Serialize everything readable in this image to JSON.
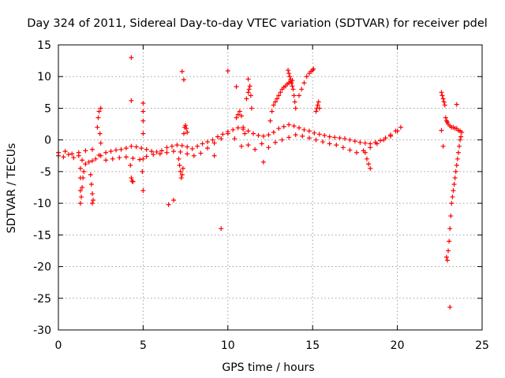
{
  "chart_data": {
    "type": "scatter",
    "title": "Day 324 of 2011, Sidereal Day-to-day VTEC variation (SDTVAR) for receiver pdel",
    "xlabel": "GPS time / hours",
    "ylabel": "SDTVAR / TECUs",
    "xlim": [
      0,
      25
    ],
    "ylim": [
      -30,
      15
    ],
    "xticks": [
      0,
      5,
      10,
      15,
      20,
      25
    ],
    "yticks": [
      -30,
      -25,
      -20,
      -15,
      -10,
      -5,
      0,
      5,
      10,
      15
    ],
    "grid": true,
    "marker": "+",
    "color": "#ff0000",
    "series": [
      {
        "name": "SDTVAR",
        "x": [
          0.0,
          0.3,
          0.6,
          0.9,
          1.2,
          1.4,
          1.6,
          1.8,
          2.0,
          2.2,
          2.5,
          2.8,
          3.1,
          3.4,
          3.7,
          4.0,
          4.3,
          4.6,
          4.9,
          5.2,
          5.5,
          5.8,
          6.1,
          6.4,
          6.7,
          7.0,
          7.3,
          7.6,
          7.9,
          8.2,
          8.5,
          8.8,
          9.1,
          9.4,
          9.7,
          10.0,
          10.3,
          10.6,
          10.9,
          11.2,
          11.5,
          11.8,
          12.1,
          12.4,
          12.7,
          13.0,
          13.3,
          13.6,
          13.9,
          14.2,
          14.5,
          14.8,
          15.1,
          15.4,
          15.7,
          16.0,
          16.3,
          16.6,
          16.9,
          17.2,
          17.5,
          17.8,
          18.1,
          18.4,
          18.7,
          19.0,
          19.3,
          19.6,
          19.9,
          20.2,
          0.0,
          0.4,
          0.8,
          1.2,
          1.6,
          2.0,
          2.4,
          2.8,
          3.2,
          3.6,
          4.0,
          4.4,
          4.8,
          5.2,
          5.6,
          6.0,
          6.4,
          6.8,
          7.2,
          7.6,
          8.0,
          8.4,
          8.8,
          9.2,
          9.6,
          10.0,
          10.4,
          10.8,
          11.2,
          11.6,
          12.0,
          12.4,
          12.8,
          13.2,
          13.6,
          14.0,
          14.4,
          14.8,
          15.2,
          15.6,
          16.0,
          16.4,
          16.8,
          17.2,
          17.6,
          18.0,
          18.4,
          18.8,
          19.2,
          19.6,
          20.0,
          1.3,
          1.3,
          1.3,
          1.35,
          1.4,
          1.45,
          1.5,
          1.9,
          1.95,
          2.0,
          2.05,
          2.3,
          2.35,
          2.4,
          2.45,
          2.5,
          4.25,
          4.3,
          4.35,
          4.95,
          5.0,
          5.0,
          5.0,
          5.0,
          5.0,
          7.1,
          7.15,
          7.2,
          7.25,
          7.3,
          7.35,
          7.4,
          7.45,
          7.5,
          7.55,
          7.6,
          10.5,
          10.6,
          10.7,
          10.8,
          10.9,
          11.0,
          11.1,
          11.2,
          11.25,
          11.3,
          11.35,
          11.4,
          12.5,
          12.6,
          12.7,
          12.8,
          12.9,
          13.0,
          13.1,
          13.2,
          13.3,
          13.4,
          13.5,
          13.6,
          13.7,
          13.8,
          13.55,
          13.6,
          13.65,
          13.7,
          13.75,
          13.8,
          13.85,
          13.9,
          13.95,
          14.0,
          14.2,
          14.35,
          14.5,
          14.65,
          14.8,
          14.9,
          15.0,
          15.05,
          15.2,
          15.25,
          15.3,
          15.35,
          15.4,
          18.1,
          18.2,
          18.3,
          18.4,
          22.6,
          22.65,
          22.7,
          22.75,
          22.8,
          22.85,
          22.9,
          22.95,
          23.0,
          23.1,
          23.2,
          23.3,
          23.4,
          23.5,
          23.6,
          23.7,
          23.8,
          22.9,
          22.95,
          23.0,
          23.05,
          23.1,
          23.15,
          23.2,
          23.25,
          23.3,
          23.35,
          23.4,
          23.45,
          23.5,
          23.55,
          23.6,
          23.65,
          23.7,
          23.75,
          4.3,
          4.3,
          7.3,
          7.4,
          10.0,
          9.6,
          6.5,
          6.8,
          5.0,
          4.4,
          1.3,
          2.0,
          2.5,
          23.5,
          23.1,
          22.6,
          22.7,
          10.5,
          11.2,
          12.1,
          9.2
        ],
        "y": [
          -2.5,
          -2.7,
          -2.3,
          -2.8,
          -2.5,
          -3.2,
          -3.8,
          -3.5,
          -3.3,
          -3.0,
          -2.5,
          -2.0,
          -1.8,
          -1.6,
          -1.5,
          -1.3,
          -1.0,
          -1.1,
          -1.3,
          -1.5,
          -1.8,
          -1.9,
          -1.7,
          -1.2,
          -1.0,
          -0.8,
          -0.9,
          -1.1,
          -1.4,
          -1.0,
          -0.6,
          -0.3,
          0.0,
          0.5,
          0.9,
          1.3,
          1.6,
          1.9,
          1.7,
          1.4,
          1.0,
          0.7,
          0.6,
          0.8,
          1.2,
          1.8,
          2.1,
          2.4,
          2.2,
          1.9,
          1.6,
          1.4,
          1.1,
          0.9,
          0.7,
          0.5,
          0.4,
          0.3,
          0.2,
          0.0,
          -0.2,
          -0.4,
          -0.5,
          -0.6,
          -0.4,
          -0.1,
          0.3,
          0.8,
          1.4,
          2.0,
          -2.0,
          -1.8,
          -2.2,
          -2.0,
          -1.7,
          -1.5,
          -2.4,
          -3.2,
          -3.0,
          -2.8,
          -2.7,
          -2.9,
          -3.1,
          -2.6,
          -2.3,
          -2.2,
          -2.0,
          -1.8,
          -1.9,
          -2.2,
          -2.5,
          -2.1,
          -1.3,
          -0.5,
          0.2,
          1.0,
          0.2,
          -1.0,
          -0.8,
          -1.5,
          -0.6,
          -1.2,
          -0.4,
          0.0,
          0.4,
          0.8,
          0.6,
          0.3,
          0.0,
          -0.3,
          -0.6,
          -0.8,
          -1.2,
          -1.6,
          -2.0,
          -1.7,
          -1.2,
          -0.6,
          0.0,
          0.6,
          1.4,
          -4.5,
          -6.0,
          -8.0,
          -9.0,
          -7.5,
          -6.0,
          -5.0,
          -5.5,
          -7.0,
          -8.5,
          -9.5,
          2.0,
          3.5,
          4.5,
          1.0,
          -0.5,
          -4.0,
          -6.0,
          -6.5,
          -5.0,
          -3.0,
          1.0,
          3.0,
          4.5,
          5.8,
          -3.0,
          -4.0,
          -5.0,
          -6.0,
          -5.5,
          -4.5,
          1.0,
          2.0,
          2.3,
          1.8,
          1.2,
          3.5,
          4.0,
          4.5,
          3.8,
          2.0,
          1.0,
          6.5,
          7.5,
          8.0,
          8.5,
          7.0,
          5.0,
          3.0,
          4.5,
          5.5,
          6.0,
          6.5,
          7.0,
          7.5,
          8.0,
          8.3,
          8.5,
          8.8,
          9.0,
          9.2,
          9.4,
          11.0,
          10.5,
          10.0,
          9.5,
          9.0,
          8.5,
          8.0,
          7.0,
          6.0,
          5.0,
          7.0,
          8.0,
          9.0,
          10.0,
          10.5,
          10.8,
          11.0,
          11.2,
          4.5,
          5.0,
          5.5,
          6.0,
          5.0,
          -2.0,
          -3.0,
          -3.8,
          -4.5,
          7.5,
          7.0,
          6.5,
          6.0,
          5.5,
          3.5,
          3.0,
          2.8,
          2.5,
          2.2,
          2.0,
          2.0,
          1.8,
          1.8,
          1.5,
          1.4,
          1.2,
          -18.5,
          -19.0,
          -17.5,
          -16.0,
          -14.0,
          -12.0,
          -10.0,
          -9.0,
          -8.0,
          -7.0,
          -6.0,
          -5.0,
          -4.0,
          -3.0,
          -2.0,
          -1.0,
          0.0,
          0.5,
          13.0,
          6.2,
          10.8,
          9.5,
          10.9,
          -14.0,
          -10.2,
          -9.5,
          -8.0,
          -6.6,
          -10.0,
          -10.0,
          5.0,
          5.6,
          -26.4,
          1.5,
          -1.0,
          8.4,
          9.6,
          -3.5,
          -2.5
        ]
      }
    ]
  }
}
